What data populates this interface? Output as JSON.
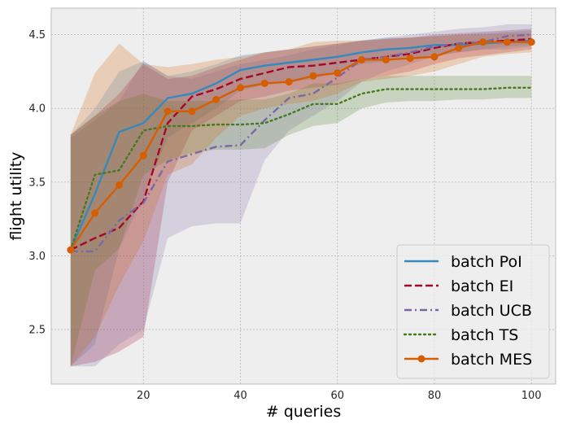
{
  "chart_data": {
    "type": "line",
    "title": "",
    "xlabel": "# queries",
    "ylabel": "flight utility",
    "xlim": [
      1,
      105
    ],
    "ylim": [
      2.13,
      4.68
    ],
    "xticks": [
      20,
      40,
      60,
      80,
      100
    ],
    "yticks": [
      2.5,
      3.0,
      3.5,
      4.0,
      4.5
    ],
    "xtick_labels": [
      "20",
      "40",
      "60",
      "80",
      "100"
    ],
    "ytick_labels": [
      "2.5",
      "3.0",
      "3.5",
      "4.0",
      "4.5"
    ],
    "grid": true,
    "legend_position": "lower-right",
    "x": [
      5,
      10,
      15,
      20,
      25,
      30,
      35,
      40,
      45,
      50,
      55,
      60,
      65,
      70,
      75,
      80,
      85,
      90,
      95,
      100
    ],
    "series": [
      {
        "name": "batch PoI",
        "color": "#348ABD",
        "style": "solid",
        "marker": "none",
        "values": [
          3.04,
          3.42,
          3.84,
          3.9,
          4.07,
          4.1,
          4.17,
          4.26,
          4.29,
          4.31,
          4.33,
          4.35,
          4.38,
          4.4,
          4.41,
          4.43,
          4.43,
          4.44,
          4.45,
          4.46
        ],
        "lower": [
          2.25,
          2.4,
          3.05,
          3.4,
          3.8,
          3.9,
          4.0,
          4.12,
          4.16,
          4.18,
          4.2,
          4.25,
          4.3,
          4.32,
          4.34,
          4.36,
          4.38,
          4.4,
          4.4,
          4.42
        ],
        "upper": [
          3.82,
          4.0,
          4.25,
          4.32,
          4.22,
          4.25,
          4.3,
          4.36,
          4.38,
          4.4,
          4.42,
          4.44,
          4.46,
          4.48,
          4.48,
          4.49,
          4.5,
          4.51,
          4.52,
          4.53
        ]
      },
      {
        "name": "batch EI",
        "color": "#A60628",
        "style": "dashed",
        "marker": "none",
        "values": [
          3.04,
          3.12,
          3.19,
          3.37,
          3.9,
          4.08,
          4.13,
          4.2,
          4.24,
          4.28,
          4.29,
          4.31,
          4.33,
          4.35,
          4.37,
          4.41,
          4.44,
          4.45,
          4.46,
          4.47
        ],
        "lower": [
          2.25,
          2.28,
          2.35,
          2.45,
          3.5,
          3.85,
          3.95,
          4.05,
          4.08,
          4.12,
          4.14,
          4.16,
          4.2,
          4.22,
          4.25,
          4.3,
          4.34,
          4.36,
          4.38,
          4.4
        ],
        "upper": [
          3.82,
          3.95,
          4.1,
          4.3,
          4.2,
          4.22,
          4.28,
          4.33,
          4.38,
          4.4,
          4.42,
          4.44,
          4.46,
          4.47,
          4.48,
          4.5,
          4.51,
          4.52,
          4.53,
          4.54
        ]
      },
      {
        "name": "batch UCB",
        "color": "#7A68A6",
        "style": "dashdot",
        "marker": "none",
        "values": [
          3.03,
          3.03,
          3.24,
          3.36,
          3.64,
          3.69,
          3.74,
          3.75,
          3.92,
          4.07,
          4.1,
          4.21,
          4.33,
          4.35,
          4.38,
          4.42,
          4.44,
          4.45,
          4.49,
          4.5
        ],
        "lower": [
          2.25,
          2.25,
          2.4,
          2.5,
          3.12,
          3.2,
          3.22,
          3.22,
          3.65,
          3.85,
          3.95,
          4.05,
          4.18,
          4.25,
          4.3,
          4.35,
          4.38,
          4.4,
          4.42,
          4.43
        ],
        "upper": [
          3.8,
          3.92,
          4.05,
          4.32,
          4.22,
          4.2,
          4.25,
          4.3,
          4.33,
          4.36,
          4.4,
          4.43,
          4.46,
          4.48,
          4.5,
          4.52,
          4.54,
          4.55,
          4.57,
          4.57
        ]
      },
      {
        "name": "batch TS",
        "color": "#467821",
        "style": "dotted",
        "marker": "none",
        "values": [
          3.04,
          3.55,
          3.58,
          3.85,
          3.88,
          3.88,
          3.89,
          3.89,
          3.9,
          3.96,
          4.03,
          4.03,
          4.1,
          4.13,
          4.13,
          4.13,
          4.13,
          4.13,
          4.14,
          4.14
        ],
        "lower": [
          2.25,
          2.9,
          3.05,
          3.55,
          3.65,
          3.7,
          3.72,
          3.72,
          3.73,
          3.82,
          3.88,
          3.9,
          4.0,
          4.04,
          4.05,
          4.05,
          4.06,
          4.06,
          4.07,
          4.07
        ],
        "upper": [
          3.82,
          3.95,
          4.05,
          4.1,
          4.05,
          4.05,
          4.05,
          4.06,
          4.06,
          4.1,
          4.17,
          4.17,
          4.2,
          4.22,
          4.22,
          4.22,
          4.22,
          4.22,
          4.22,
          4.22
        ]
      },
      {
        "name": "batch MES",
        "color": "#D55E00",
        "style": "solid",
        "marker": "circle",
        "values": [
          3.04,
          3.29,
          3.48,
          3.68,
          3.98,
          3.98,
          4.06,
          4.14,
          4.17,
          4.18,
          4.22,
          4.24,
          4.33,
          4.33,
          4.34,
          4.35,
          4.41,
          4.45,
          4.45,
          4.45
        ],
        "lower": [
          2.25,
          2.45,
          2.8,
          3.1,
          3.55,
          3.62,
          3.8,
          3.95,
          4.0,
          4.03,
          4.05,
          4.1,
          4.18,
          4.2,
          4.22,
          4.25,
          4.3,
          4.35,
          4.37,
          4.38
        ],
        "upper": [
          3.82,
          4.24,
          4.44,
          4.3,
          4.28,
          4.3,
          4.33,
          4.35,
          4.38,
          4.4,
          4.45,
          4.46,
          4.46,
          4.47,
          4.48,
          4.49,
          4.5,
          4.5,
          4.51,
          4.51
        ]
      }
    ]
  }
}
